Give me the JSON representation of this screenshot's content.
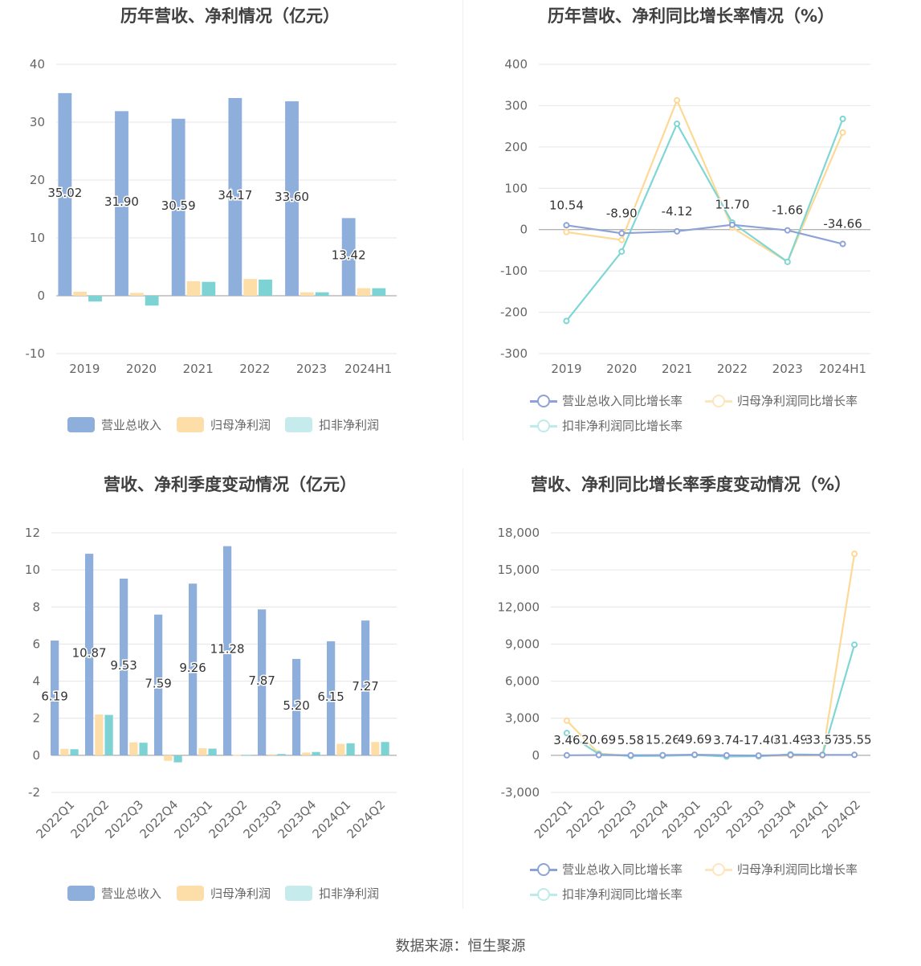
{
  "colors": {
    "revenue": "#8eaedc",
    "net_profit": "#fddea8",
    "deducted_profit": "#7dd3d4",
    "revenue_line": "#8da2d6",
    "net_line": "#fdd995",
    "deducted_line": "#7fd6d4"
  },
  "legend": {
    "revenue": "营业总收入",
    "net_profit": "归母净利润",
    "deducted_profit": "扣非净利润",
    "revenue_growth": "营业总收入同比增长率",
    "net_growth": "归母净利润同比增长率",
    "deducted_growth": "扣非净利润同比增长率"
  },
  "source": "数据来源：恒生聚源",
  "chart_data": [
    {
      "type": "bar",
      "title": "历年营收、净利情况（亿元）",
      "categories": [
        "2019",
        "2020",
        "2021",
        "2022",
        "2023",
        "2024H1"
      ],
      "ylim": [
        -10,
        40
      ],
      "yticks": [
        -10,
        0,
        10,
        20,
        30,
        40
      ],
      "series": [
        {
          "name": "营业总收入",
          "values": [
            35.02,
            31.9,
            30.59,
            34.17,
            33.6,
            13.42
          ]
        },
        {
          "name": "归母净利润",
          "values": [
            0.7,
            0.5,
            2.5,
            2.9,
            0.6,
            1.3
          ]
        },
        {
          "name": "扣非净利润",
          "values": [
            -1.0,
            -1.7,
            2.4,
            2.8,
            0.6,
            1.3
          ]
        }
      ],
      "data_labels": [
        "35.02",
        "31.90",
        "30.59",
        "34.17",
        "33.60",
        "13.42"
      ],
      "legend_position": "bottom",
      "grid": true
    },
    {
      "type": "line",
      "title": "历年营收、净利同比增长率情况（%）",
      "categories": [
        "2019",
        "2020",
        "2021",
        "2022",
        "2023",
        "2024H1"
      ],
      "ylim": [
        -300,
        400
      ],
      "yticks": [
        -300,
        -200,
        -100,
        0,
        100,
        200,
        300,
        400
      ],
      "series": [
        {
          "name": "营业总收入同比增长率",
          "values": [
            10.54,
            -8.9,
            -4.12,
            11.7,
            -1.66,
            -34.66
          ]
        },
        {
          "name": "归母净利润同比增长率",
          "values": [
            -6,
            -25,
            313,
            5,
            -78,
            235
          ]
        },
        {
          "name": "扣非净利润同比增长率",
          "values": [
            -221,
            -53,
            256,
            17,
            -78,
            268
          ]
        }
      ],
      "data_labels": [
        "10.54",
        "-8.90",
        "-4.12",
        "11.70",
        "-1.66",
        "-34.66"
      ],
      "legend_position": "bottom",
      "grid": true
    },
    {
      "type": "bar",
      "title": "营收、净利季度变动情况（亿元）",
      "categories": [
        "2022Q1",
        "2022Q2",
        "2022Q3",
        "2022Q4",
        "2023Q1",
        "2023Q2",
        "2023Q3",
        "2023Q4",
        "2024Q1",
        "2024Q2"
      ],
      "ylim": [
        -2,
        12
      ],
      "yticks": [
        -2,
        0,
        2,
        4,
        6,
        8,
        10,
        12
      ],
      "series": [
        {
          "name": "营业总收入",
          "values": [
            6.19,
            10.87,
            9.53,
            7.59,
            9.26,
            11.28,
            7.87,
            5.2,
            6.15,
            7.27
          ]
        },
        {
          "name": "归母净利润",
          "values": [
            0.35,
            2.2,
            0.7,
            -0.3,
            0.38,
            0.02,
            0.05,
            0.15,
            0.62,
            0.72
          ]
        },
        {
          "name": "扣非净利润",
          "values": [
            0.33,
            2.18,
            0.68,
            -0.38,
            0.36,
            0.02,
            0.07,
            0.18,
            0.65,
            0.72
          ]
        }
      ],
      "data_labels": [
        "6.19",
        "10.87",
        "9.53",
        "7.59",
        "9.26",
        "11.28",
        "7.87",
        "5.20",
        "6.15",
        "7.27"
      ],
      "legend_position": "bottom",
      "grid": true
    },
    {
      "type": "line",
      "title": "营收、净利同比增长率季度变动情况（%）",
      "categories": [
        "2022Q1",
        "2022Q2",
        "2022Q3",
        "2022Q4",
        "2023Q1",
        "2023Q2",
        "2023Q3",
        "2023Q4",
        "2024Q1",
        "2024Q2"
      ],
      "ylim": [
        -3000,
        18000
      ],
      "yticks": [
        -3000,
        0,
        3000,
        6000,
        9000,
        12000,
        15000,
        18000
      ],
      "ytick_labels": [
        "-3,000",
        "0",
        "3,000",
        "6,000",
        "9,000",
        "12,000",
        "15,000",
        "18,000"
      ],
      "series": [
        {
          "name": "营业总收入同比增长率",
          "values": [
            3.46,
            20.69,
            5.58,
            15.26,
            49.69,
            3.74,
            -17.4,
            31.49,
            33.57,
            35.55
          ]
        },
        {
          "name": "归母净利润同比增长率",
          "values": [
            2800,
            150,
            -40,
            -30,
            30,
            -90,
            -60,
            -20,
            -10,
            16300
          ]
        },
        {
          "name": "扣非净利润同比增长率",
          "values": [
            1800,
            100,
            -60,
            -40,
            20,
            -100,
            -80,
            80,
            40,
            8950
          ]
        }
      ],
      "data_labels": [
        "3.46",
        "20.69",
        "5.58",
        "15.26",
        "49.69",
        "3.74",
        "-17.40",
        "31.49",
        "33.57",
        "35.55"
      ],
      "legend_position": "bottom",
      "grid": true
    }
  ]
}
